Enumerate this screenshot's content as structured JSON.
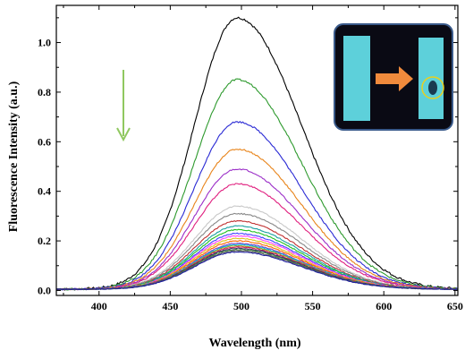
{
  "chart_data": {
    "type": "line",
    "title": "",
    "xlabel": "Wavelength (nm)",
    "ylabel": "Fluorescence Intensity (a.u.)",
    "xlim": [
      370,
      652
    ],
    "ylim": [
      -0.02,
      1.15
    ],
    "xticks": [
      400,
      450,
      500,
      550,
      600,
      650
    ],
    "yticks": [
      0.0,
      0.2,
      0.4,
      0.6,
      0.8,
      1.0
    ],
    "xtick_labels": [
      "400",
      "450",
      "500",
      "550",
      "600",
      "650"
    ],
    "ytick_labels": [
      "0.0",
      "0.2",
      "0.4",
      "0.6",
      "0.8",
      "1.0"
    ],
    "grid": false,
    "legend": "none",
    "peak_wavelength": 497,
    "baseline": 0.005,
    "series": [
      {
        "color": "#000000",
        "peak": 1.1
      },
      {
        "color": "#2e9a2e",
        "peak": 0.85
      },
      {
        "color": "#2a2ad4",
        "peak": 0.68
      },
      {
        "color": "#e8841a",
        "peak": 0.57
      },
      {
        "color": "#9b2fc8",
        "peak": 0.49
      },
      {
        "color": "#e0207f",
        "peak": 0.43
      },
      {
        "color": "#c8c8c8",
        "peak": 0.34
      },
      {
        "color": "#888888",
        "peak": 0.31
      },
      {
        "color": "#c03030",
        "peak": 0.28
      },
      {
        "color": "#1aa0a0",
        "peak": 0.26
      },
      {
        "color": "#20c020",
        "peak": 0.245
      },
      {
        "color": "#4040ff",
        "peak": 0.23
      },
      {
        "color": "#ff40ff",
        "peak": 0.22
      },
      {
        "color": "#e0c020",
        "peak": 0.21
      },
      {
        "color": "#ff6600",
        "peak": 0.2
      },
      {
        "color": "#8040c0",
        "peak": 0.19
      },
      {
        "color": "#00b0e0",
        "peak": 0.185
      },
      {
        "color": "#a0a020",
        "peak": 0.18
      },
      {
        "color": "#d02060",
        "peak": 0.175
      },
      {
        "color": "#303060",
        "peak": 0.17
      },
      {
        "color": "#408040",
        "peak": 0.165
      },
      {
        "color": "#606060",
        "peak": 0.16
      },
      {
        "color": "#2020a0",
        "peak": 0.155
      }
    ],
    "annotations": {
      "arrow_color": "#90c860",
      "arrow_direction": "down",
      "inset_description_colors": {
        "background": "#0a0a14",
        "strip_glow": "#66e6f0",
        "arrow_fill": "#f08a3c",
        "circle": "#e8d020"
      }
    }
  }
}
